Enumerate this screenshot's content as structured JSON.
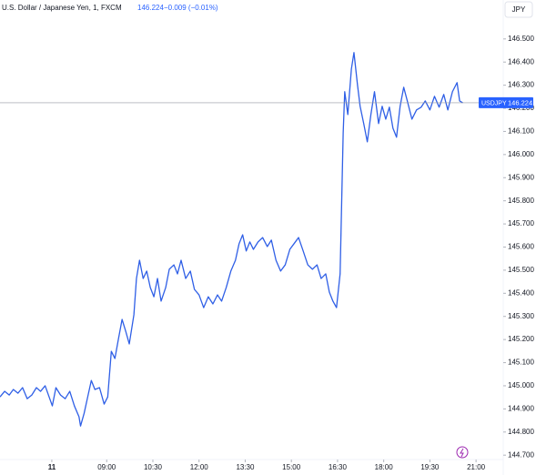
{
  "chart_data": {
    "type": "line",
    "header": {
      "title": "U.S. Dollar / Japanese Yen, 1, FXCM",
      "last": "146.224",
      "change": "−0.009 (−0.01%)"
    },
    "currency_button": "JPY",
    "price_tag": {
      "symbol": "USDJPY",
      "value": 146.224
    },
    "x": [
      "05:32",
      "05:41",
      "05:50",
      "05:58",
      "06:07",
      "06:16",
      "06:25",
      "06:34",
      "06:43",
      "06:51",
      "07:00",
      "07:09",
      "07:14",
      "07:21",
      "07:30",
      "07:39",
      "07:48",
      "07:57",
      "08:06",
      "08:09",
      "08:16",
      "08:23",
      "08:30",
      "08:37",
      "08:46",
      "08:55",
      "09:02",
      "09:09",
      "09:16",
      "09:23",
      "09:30",
      "09:37",
      "09:44",
      "09:53",
      "09:58",
      "10:04",
      "10:11",
      "10:18",
      "10:25",
      "10:32",
      "10:39",
      "10:46",
      "10:55",
      "11:02",
      "11:11",
      "11:18",
      "11:25",
      "11:34",
      "11:43",
      "11:51",
      "12:00",
      "12:09",
      "12:18",
      "12:27",
      "12:36",
      "12:44",
      "12:53",
      "13:02",
      "13:11",
      "13:18",
      "13:25",
      "13:32",
      "13:39",
      "13:46",
      "13:55",
      "14:04",
      "14:13",
      "14:21",
      "14:30",
      "14:39",
      "14:48",
      "14:57",
      "15:05",
      "15:14",
      "15:23",
      "15:32",
      "15:41",
      "15:50",
      "15:58",
      "16:07",
      "16:14",
      "16:21",
      "16:28",
      "16:35",
      "16:41",
      "16:44",
      "16:50",
      "16:57",
      "17:02",
      "17:09",
      "17:14",
      "17:21",
      "17:28",
      "17:35",
      "17:42",
      "17:50",
      "17:57",
      "18:04",
      "18:11",
      "18:18",
      "18:25",
      "18:32",
      "18:39",
      "18:46",
      "18:55",
      "19:04",
      "19:13",
      "19:21",
      "19:30",
      "19:39",
      "19:48",
      "19:57",
      "20:05",
      "20:14",
      "20:23",
      "20:28",
      "20:34"
    ],
    "series": [
      {
        "name": "USDJPY",
        "color": "#2f5fe6",
        "values": [
          144.952,
          144.976,
          144.96,
          144.984,
          144.968,
          144.992,
          144.944,
          144.96,
          144.992,
          144.976,
          145.0,
          144.944,
          144.913,
          144.992,
          144.96,
          144.944,
          144.976,
          144.913,
          144.866,
          144.826,
          144.881,
          144.952,
          145.023,
          144.984,
          144.992,
          144.921,
          144.952,
          145.149,
          145.118,
          145.204,
          145.287,
          145.236,
          145.181,
          145.307,
          145.464,
          145.543,
          145.464,
          145.496,
          145.425,
          145.385,
          145.464,
          145.366,
          145.425,
          145.504,
          145.523,
          145.484,
          145.543,
          145.464,
          145.496,
          145.417,
          145.393,
          145.338,
          145.385,
          145.354,
          145.393,
          145.366,
          145.425,
          145.496,
          145.543,
          145.614,
          145.653,
          145.583,
          145.622,
          145.59,
          145.622,
          145.641,
          145.602,
          145.63,
          145.543,
          145.496,
          145.523,
          145.59,
          145.614,
          145.641,
          145.583,
          145.523,
          145.504,
          145.523,
          145.464,
          145.484,
          145.405,
          145.366,
          145.338,
          145.484,
          146.094,
          146.272,
          146.173,
          146.37,
          146.441,
          146.299,
          146.209,
          146.134,
          146.055,
          146.173,
          146.272,
          146.134,
          146.209,
          146.153,
          146.205,
          146.114,
          146.075,
          146.209,
          146.291,
          146.232,
          146.153,
          146.193,
          146.205,
          146.232,
          146.193,
          146.252,
          146.205,
          146.26,
          146.193,
          146.272,
          146.311,
          146.232,
          146.224
        ]
      }
    ],
    "xlim": [
      "05:32",
      "21:53"
    ],
    "xticks": [
      {
        "value": "07:13",
        "label": "11"
      },
      "09:00",
      "10:30",
      "12:00",
      "13:30",
      "15:00",
      "16:30",
      "18:00",
      "19:30",
      "21:00"
    ],
    "ylim": [
      144.6535,
      146.6527
    ],
    "yticks": [
      {
        "value": 144.7,
        "label": "144.700"
      },
      {
        "value": 144.8,
        "label": "144.800"
      },
      {
        "value": 144.9,
        "label": "144.900"
      },
      {
        "value": 145.0,
        "label": "145.000"
      },
      {
        "value": 145.1,
        "label": "145.100"
      },
      {
        "value": 145.2,
        "label": "145.200"
      },
      {
        "value": 145.3,
        "label": "145.300"
      },
      {
        "value": 145.4,
        "label": "145.400"
      },
      {
        "value": 145.5,
        "label": "145.500"
      },
      {
        "value": 145.6,
        "label": "145.600"
      },
      {
        "value": 145.7,
        "label": "145.700"
      },
      {
        "value": 145.8,
        "label": "145.800"
      },
      {
        "value": 145.9,
        "label": "145.900"
      },
      {
        "value": 146.0,
        "label": "146.000"
      },
      {
        "value": 146.1,
        "label": "146.100"
      },
      {
        "value": 146.2,
        "label": "146.200"
      },
      {
        "value": 146.3,
        "label": "146.300"
      },
      {
        "value": 146.4,
        "label": "146.400"
      },
      {
        "value": 146.5,
        "label": "146.500"
      }
    ],
    "grid": false
  }
}
